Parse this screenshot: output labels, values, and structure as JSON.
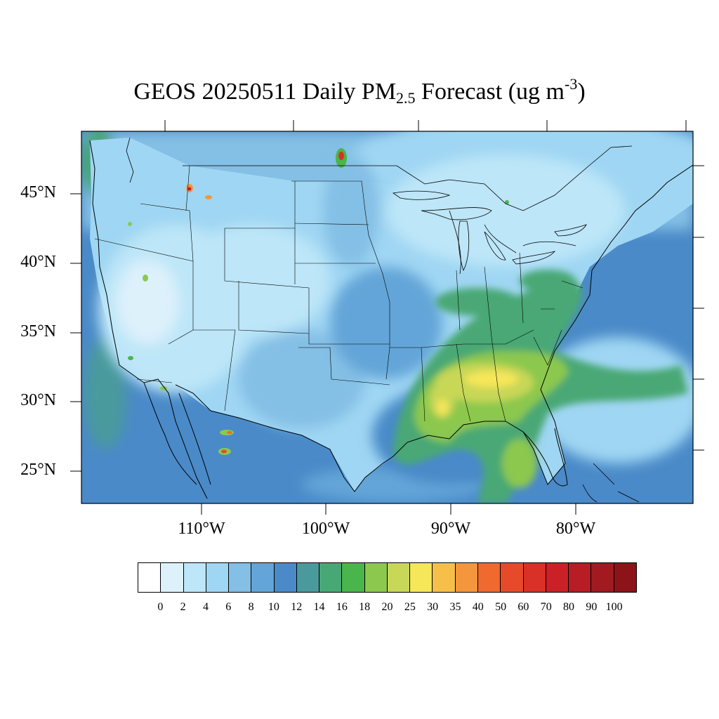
{
  "title": {
    "prefix": "GEOS 20250511 Daily PM",
    "subscript": "2.5",
    "middle": " Forecast (ug m",
    "superscript": "-3",
    "suffix": ")"
  },
  "map": {
    "region": "Contiguous United States",
    "projection": "cylindrical equidistant",
    "lon_range": [
      -119,
      -71
    ],
    "lat_range": [
      22.5,
      49.5
    ],
    "lat_labels": [
      "45°N",
      "40°N",
      "35°N",
      "30°N",
      "25°N"
    ],
    "lon_labels": [
      "110°W",
      "100°W",
      "90°W",
      "80°W"
    ],
    "ocean_color": "#4a8ac8",
    "land_base_color": "#b8def5",
    "boundary_color": "#000000"
  },
  "colorbar": {
    "levels": [
      "0",
      "2",
      "4",
      "6",
      "8",
      "10",
      "12",
      "14",
      "16",
      "18",
      "20",
      "25",
      "30",
      "35",
      "40",
      "50",
      "60",
      "70",
      "80",
      "90",
      "100"
    ],
    "colors": [
      "#ffffff",
      "#ddf1fb",
      "#bde6f8",
      "#9fd6f3",
      "#84bfe5",
      "#63a5d8",
      "#4a8ac8",
      "#4a9a9d",
      "#48a875",
      "#4ab54a",
      "#8cc84e",
      "#c8d757",
      "#f6e65a",
      "#f6bf49",
      "#f4963b",
      "#f0692e",
      "#e64a2b",
      "#d93028",
      "#cc2027",
      "#b81c24",
      "#a01a20",
      "#8c1419"
    ]
  }
}
